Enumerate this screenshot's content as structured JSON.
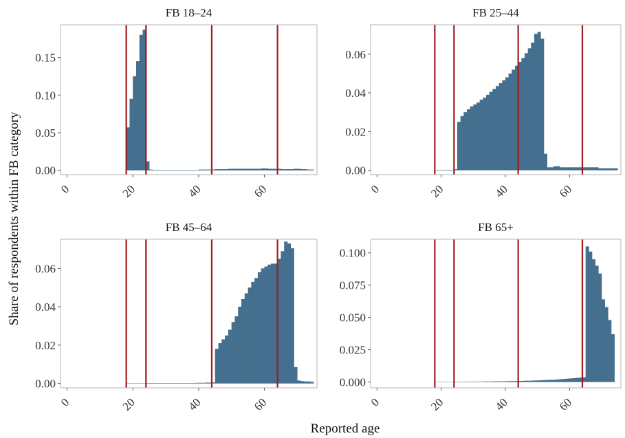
{
  "chart_data": {
    "type": "bar",
    "layout": "facet-grid-2x2",
    "xlabel": "Reported age",
    "ylabel": "Share of respondents within FB category",
    "bar_color": "#456f8e",
    "vline_color": "#a01c1c",
    "vlines": [
      18,
      24,
      44,
      64
    ],
    "xlim": [
      -2,
      76
    ],
    "x_ticks": [
      0,
      20,
      40,
      60
    ],
    "x_tick_labels": [
      "0",
      "20",
      "40",
      "60"
    ],
    "bin_width": 1,
    "ages": [
      18,
      19,
      20,
      21,
      22,
      23,
      24,
      25,
      26,
      27,
      28,
      29,
      30,
      31,
      32,
      33,
      34,
      35,
      36,
      37,
      38,
      39,
      40,
      41,
      42,
      43,
      44,
      45,
      46,
      47,
      48,
      49,
      50,
      51,
      52,
      53,
      54,
      55,
      56,
      57,
      58,
      59,
      60,
      61,
      62,
      63,
      64,
      65,
      66,
      67,
      68,
      69,
      70,
      71,
      72,
      73,
      74
    ],
    "panels": [
      {
        "title": "FB 18–24",
        "ylim": [
          -0.0058,
          0.1935
        ],
        "y_ticks": [
          0,
          0.05,
          0.1,
          0.15
        ],
        "y_tick_labels": [
          "0.00",
          "0.05",
          "0.10",
          "0.15"
        ],
        "values": [
          0.057,
          0.095,
          0.125,
          0.145,
          0.18,
          0.187,
          0.012,
          0.001,
          0.0005,
          0.0005,
          0.0005,
          0.0005,
          0.0005,
          0.0005,
          0.0005,
          0.0005,
          0.0005,
          0.0005,
          0.0005,
          0.0005,
          0.0005,
          0.0005,
          0.001,
          0.001,
          0.001,
          0.001,
          0.001,
          0.0015,
          0.0015,
          0.0015,
          0.0015,
          0.002,
          0.002,
          0.002,
          0.002,
          0.002,
          0.002,
          0.002,
          0.002,
          0.002,
          0.002,
          0.0025,
          0.0025,
          0.002,
          0.002,
          0.002,
          0.002,
          0.0015,
          0.0015,
          0.0015,
          0.0015,
          0.002,
          0.002,
          0.0015,
          0.0015,
          0.001,
          0.001
        ]
      },
      {
        "title": "FB 25–44",
        "ylim": [
          -0.0023,
          0.0752
        ],
        "y_ticks": [
          0,
          0.02,
          0.04,
          0.06
        ],
        "y_tick_labels": [
          "0.00",
          "0.02",
          "0.04",
          "0.06"
        ],
        "values": [
          0.0002,
          0.0002,
          0.0002,
          0.0002,
          0.0002,
          0.0002,
          0.0005,
          0.025,
          0.028,
          0.03,
          0.0315,
          0.033,
          0.034,
          0.035,
          0.0365,
          0.0375,
          0.039,
          0.0405,
          0.042,
          0.0435,
          0.045,
          0.0465,
          0.048,
          0.05,
          0.052,
          0.054,
          0.056,
          0.058,
          0.0605,
          0.063,
          0.066,
          0.0705,
          0.0715,
          0.068,
          0.0085,
          0.0015,
          0.0015,
          0.002,
          0.002,
          0.0015,
          0.0015,
          0.0015,
          0.0015,
          0.0015,
          0.0015,
          0.0015,
          0.0015,
          0.0015,
          0.0015,
          0.0015,
          0.0015,
          0.001,
          0.001,
          0.001,
          0.001,
          0.001,
          0.001
        ]
      },
      {
        "title": "FB 45–64",
        "ylim": [
          -0.0023,
          0.0752
        ],
        "y_ticks": [
          0,
          0.02,
          0.04,
          0.06
        ],
        "y_tick_labels": [
          "0.00",
          "0.02",
          "0.04",
          "0.06"
        ],
        "values": [
          0.0001,
          0.0001,
          0.0001,
          0.0001,
          0.0001,
          0.0001,
          0.0002,
          0.0002,
          0.0002,
          0.0002,
          0.0002,
          0.0002,
          0.0002,
          0.0002,
          0.0002,
          0.0002,
          0.0002,
          0.0002,
          0.0002,
          0.0002,
          0.0002,
          0.0003,
          0.0003,
          0.0003,
          0.0004,
          0.0004,
          0.0005,
          0.018,
          0.021,
          0.023,
          0.025,
          0.028,
          0.032,
          0.035,
          0.04,
          0.044,
          0.047,
          0.05,
          0.053,
          0.055,
          0.058,
          0.06,
          0.061,
          0.062,
          0.0625,
          0.0625,
          0.065,
          0.069,
          0.074,
          0.073,
          0.0705,
          0.0085,
          0.0015,
          0.0012,
          0.001,
          0.001,
          0.0008
        ]
      },
      {
        "title": "FB 65+",
        "ylim": [
          -0.0045,
          0.1105
        ],
        "y_ticks": [
          0,
          0.025,
          0.05,
          0.075,
          0.1
        ],
        "y_tick_labels": [
          "0.000",
          "0.025",
          "0.050",
          "0.075",
          "0.100"
        ],
        "values": [
          0.0001,
          0.0001,
          0.0001,
          0.0001,
          0.0001,
          0.0001,
          0.0002,
          0.0002,
          0.0002,
          0.0002,
          0.0002,
          0.0003,
          0.0003,
          0.0003,
          0.0003,
          0.0004,
          0.0004,
          0.0004,
          0.0005,
          0.0005,
          0.0005,
          0.0006,
          0.0006,
          0.0007,
          0.0007,
          0.0008,
          0.0008,
          0.0009,
          0.001,
          0.001,
          0.0011,
          0.0012,
          0.0013,
          0.0014,
          0.0015,
          0.0016,
          0.0017,
          0.0018,
          0.002,
          0.0022,
          0.0024,
          0.0026,
          0.0028,
          0.003,
          0.0032,
          0.0034,
          0.0036,
          0.105,
          0.101,
          0.095,
          0.09,
          0.084,
          0.064,
          0.058,
          0.048,
          0.037,
          0.0
        ]
      }
    ]
  }
}
